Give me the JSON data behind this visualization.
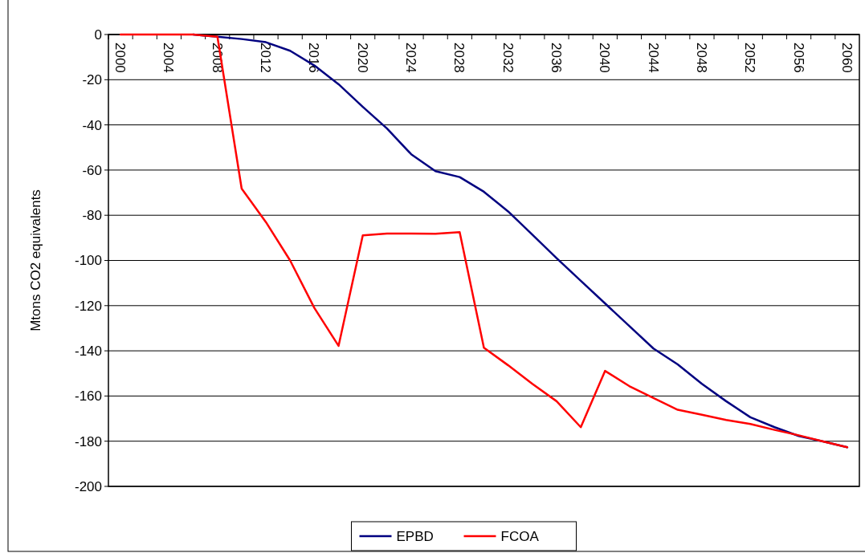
{
  "chart_data": {
    "type": "line",
    "ylabel": "Mtons CO2 equivalents",
    "categories": [
      "2000",
      null,
      "2004",
      null,
      "2008",
      null,
      "2012",
      null,
      "2016",
      null,
      "2020",
      null,
      "2024",
      null,
      "2028",
      null,
      "2032",
      null,
      "2036",
      null,
      "2040",
      null,
      "2044",
      null,
      "2048",
      null,
      "2052",
      null,
      "2056",
      null,
      "2060"
    ],
    "series": [
      {
        "name": "EPBD",
        "color": "#000080",
        "values": [
          null,
          null,
          null,
          0,
          -1,
          -2,
          -3.4,
          -7.2,
          -13.7,
          -22,
          -32,
          -41.6,
          -53,
          -60.5,
          -63.1,
          -69.6,
          -78.3,
          -88.6,
          -99,
          -109,
          -119,
          -129,
          -139,
          -146,
          -154.6,
          -162.3,
          -169.4,
          -173.8,
          -177.7,
          -180.1,
          -182.7
        ]
      },
      {
        "name": "FCOA",
        "color": "#ff0000",
        "values": [
          0,
          0,
          0,
          0,
          -1,
          -68.2,
          -83,
          -100,
          -121,
          -137.8,
          -88.9,
          -88.1,
          -88.1,
          -88.2,
          -87.5,
          -138.6,
          -146.4,
          -154.6,
          -162.3,
          -173.8,
          -148.9,
          -155.6,
          -160.9,
          -166.1,
          -168.3,
          -170.6,
          -172.4,
          -175,
          -177.4,
          -180.1,
          -182.7
        ]
      }
    ],
    "ylim": [
      -200,
      0
    ],
    "yticks": [
      -200,
      -180,
      -160,
      -140,
      -120,
      -100,
      -80,
      -60,
      -40,
      -20,
      0
    ],
    "grid": "y",
    "legend": "bottom"
  }
}
